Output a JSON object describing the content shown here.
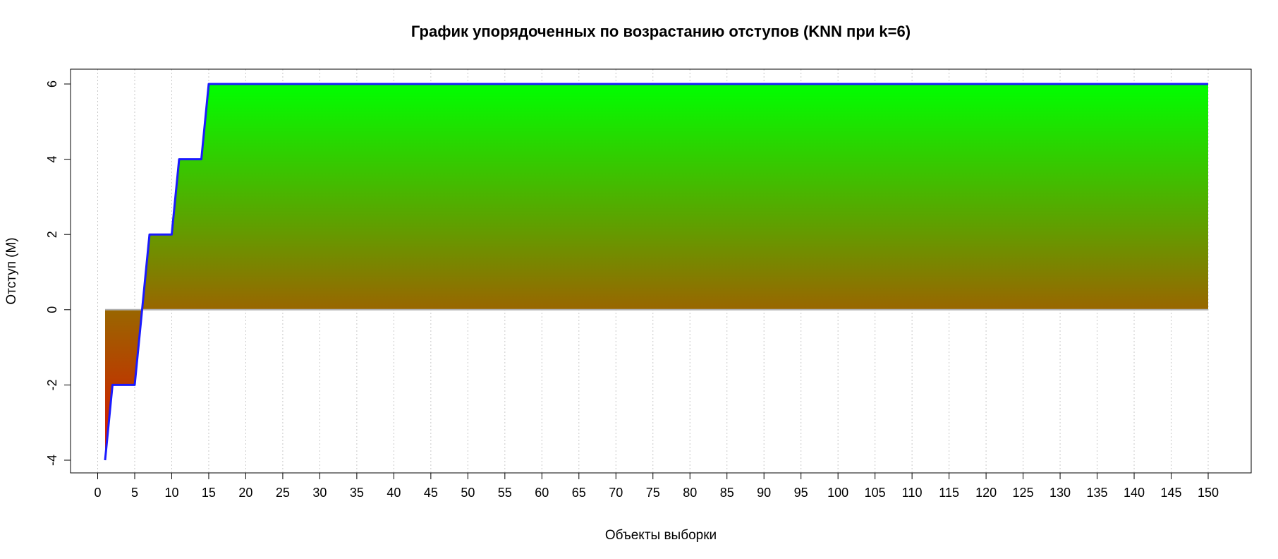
{
  "chart_data": {
    "type": "area",
    "title": "График упорядоченных по возрастанию отступов (KNN при k=6)",
    "xlabel": "Объекты выборки",
    "ylabel": "Отступ (M)",
    "xlim": [
      1,
      150
    ],
    "ylim": [
      -4,
      6
    ],
    "x_ticks": [
      0,
      5,
      10,
      15,
      20,
      25,
      30,
      35,
      40,
      45,
      50,
      55,
      60,
      65,
      70,
      75,
      80,
      85,
      90,
      95,
      100,
      105,
      110,
      115,
      120,
      125,
      130,
      135,
      140,
      145,
      150
    ],
    "y_ticks": [
      -4,
      -2,
      0,
      2,
      4,
      6
    ],
    "grid": "vertical dotted",
    "colors": {
      "line": "#1a1aff",
      "positive_top": "#00ff00",
      "baseline": "#996600",
      "negative_bottom": "#dd1100",
      "zero_line": "#b0b0b0",
      "grid": "#c8c8c8"
    },
    "series": [
      {
        "x": [
          1,
          2,
          3,
          4,
          5,
          6,
          7,
          8,
          9,
          10,
          11,
          12,
          13,
          14,
          15,
          150
        ],
        "values": [
          -4,
          -2,
          -2,
          -2,
          -2,
          0,
          2,
          2,
          2,
          2,
          4,
          4,
          4,
          4,
          6,
          6
        ]
      }
    ]
  }
}
